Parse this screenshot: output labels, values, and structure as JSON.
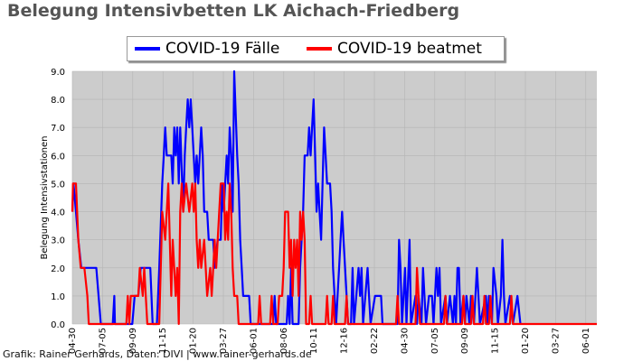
{
  "chart_data": {
    "type": "line",
    "title": "Belegung Intensivbetten LK Aichach-Friedberg",
    "ylabel": "Belegung Intensivstationen",
    "xlabel": "",
    "ylim": [
      0,
      9
    ],
    "yticks": [
      "0.0",
      "1.0",
      "2.0",
      "3.0",
      "4.0",
      "5.0",
      "6.0",
      "7.0",
      "8.0",
      "9.0"
    ],
    "grid": true,
    "legend_position": "top",
    "x_tick_labels": [
      "04-30",
      "07-05",
      "09-09",
      "11-15",
      "01-20",
      "03-27",
      "06-01",
      "08-06",
      "10-11",
      "12-16",
      "02-22",
      "04-30",
      "07-05",
      "09-09",
      "11-15",
      "01-20",
      "03-27",
      "06-01"
    ],
    "x_start_label": "04-30",
    "x_end_label": "after 06-01",
    "series": [
      {
        "name": "COVID-19 Fälle",
        "color": "#0000ff",
        "points": [
          [
            0,
            4
          ],
          [
            0.04,
            5
          ],
          [
            0.12,
            4
          ],
          [
            0.2,
            3
          ],
          [
            0.3,
            2
          ],
          [
            0.8,
            2
          ],
          [
            0.95,
            0
          ],
          [
            1.1,
            0
          ],
          [
            1.35,
            0
          ],
          [
            1.4,
            1
          ],
          [
            1.42,
            0
          ],
          [
            2.0,
            0
          ],
          [
            2.08,
            1
          ],
          [
            2.2,
            1
          ],
          [
            2.28,
            2
          ],
          [
            2.6,
            2
          ],
          [
            2.68,
            0
          ],
          [
            2.82,
            0
          ],
          [
            2.9,
            2
          ],
          [
            3.0,
            5
          ],
          [
            3.05,
            6
          ],
          [
            3.1,
            7
          ],
          [
            3.15,
            6
          ],
          [
            3.3,
            6
          ],
          [
            3.35,
            5
          ],
          [
            3.4,
            7
          ],
          [
            3.45,
            6
          ],
          [
            3.5,
            7
          ],
          [
            3.55,
            5
          ],
          [
            3.6,
            7
          ],
          [
            3.7,
            4
          ],
          [
            3.75,
            6
          ],
          [
            3.8,
            7
          ],
          [
            3.85,
            8
          ],
          [
            3.9,
            7
          ],
          [
            3.95,
            8
          ],
          [
            4.0,
            7
          ],
          [
            4.05,
            6
          ],
          [
            4.1,
            5
          ],
          [
            4.15,
            6
          ],
          [
            4.2,
            5
          ],
          [
            4.25,
            6
          ],
          [
            4.3,
            7
          ],
          [
            4.35,
            6
          ],
          [
            4.4,
            4
          ],
          [
            4.5,
            4
          ],
          [
            4.55,
            3
          ],
          [
            4.7,
            3
          ],
          [
            4.75,
            2
          ],
          [
            4.85,
            3
          ],
          [
            4.95,
            3
          ],
          [
            5.0,
            5
          ],
          [
            5.05,
            4
          ],
          [
            5.1,
            5
          ],
          [
            5.15,
            6
          ],
          [
            5.2,
            5
          ],
          [
            5.25,
            7
          ],
          [
            5.3,
            6
          ],
          [
            5.35,
            4
          ],
          [
            5.4,
            9
          ],
          [
            5.5,
            6
          ],
          [
            5.55,
            5
          ],
          [
            5.6,
            3
          ],
          [
            5.65,
            2
          ],
          [
            5.7,
            1
          ],
          [
            5.9,
            1
          ],
          [
            5.95,
            0
          ],
          [
            6.7,
            0
          ],
          [
            6.75,
            1
          ],
          [
            6.8,
            0
          ],
          [
            7.15,
            0
          ],
          [
            7.2,
            1
          ],
          [
            7.25,
            0
          ],
          [
            7.3,
            2
          ],
          [
            7.35,
            0
          ],
          [
            7.55,
            0
          ],
          [
            7.6,
            2
          ],
          [
            7.7,
            4
          ],
          [
            7.75,
            6
          ],
          [
            7.85,
            6
          ],
          [
            7.9,
            7
          ],
          [
            7.95,
            6
          ],
          [
            8.0,
            7
          ],
          [
            8.05,
            8
          ],
          [
            8.1,
            6
          ],
          [
            8.15,
            4
          ],
          [
            8.2,
            5
          ],
          [
            8.25,
            4
          ],
          [
            8.3,
            3
          ],
          [
            8.35,
            5
          ],
          [
            8.4,
            7
          ],
          [
            8.45,
            6
          ],
          [
            8.5,
            5
          ],
          [
            8.6,
            5
          ],
          [
            8.65,
            4
          ],
          [
            8.7,
            2
          ],
          [
            8.75,
            1
          ],
          [
            8.8,
            0
          ],
          [
            8.85,
            1
          ],
          [
            8.9,
            2
          ],
          [
            8.95,
            3
          ],
          [
            9.0,
            4
          ],
          [
            9.05,
            3
          ],
          [
            9.1,
            2
          ],
          [
            9.15,
            1
          ],
          [
            9.2,
            0
          ],
          [
            9.3,
            0
          ],
          [
            9.35,
            2
          ],
          [
            9.4,
            0
          ],
          [
            9.55,
            2
          ],
          [
            9.6,
            1
          ],
          [
            9.65,
            2
          ],
          [
            9.7,
            0
          ],
          [
            9.85,
            2
          ],
          [
            9.9,
            1
          ],
          [
            9.95,
            0
          ],
          [
            10.1,
            1
          ],
          [
            10.3,
            1
          ],
          [
            10.35,
            0
          ],
          [
            10.85,
            0
          ],
          [
            10.9,
            3
          ],
          [
            10.95,
            2
          ],
          [
            11.0,
            0
          ],
          [
            11.1,
            2
          ],
          [
            11.15,
            0
          ],
          [
            11.25,
            3
          ],
          [
            11.3,
            0
          ],
          [
            11.45,
            1
          ],
          [
            11.5,
            0
          ],
          [
            11.55,
            1
          ],
          [
            11.65,
            0
          ],
          [
            11.7,
            2
          ],
          [
            11.75,
            1
          ],
          [
            11.8,
            0
          ],
          [
            11.9,
            1
          ],
          [
            12.0,
            1
          ],
          [
            12.05,
            0
          ],
          [
            12.15,
            2
          ],
          [
            12.2,
            1
          ],
          [
            12.25,
            2
          ],
          [
            12.3,
            0
          ],
          [
            12.45,
            1
          ],
          [
            12.5,
            0
          ],
          [
            12.6,
            1
          ],
          [
            12.7,
            0
          ],
          [
            12.75,
            1
          ],
          [
            12.8,
            0
          ],
          [
            12.85,
            2
          ],
          [
            12.9,
            2
          ],
          [
            12.95,
            0
          ],
          [
            13.05,
            1
          ],
          [
            13.1,
            0
          ],
          [
            13.15,
            1
          ],
          [
            13.25,
            0
          ],
          [
            13.3,
            1
          ],
          [
            13.4,
            0
          ],
          [
            13.5,
            2
          ],
          [
            13.55,
            1
          ],
          [
            13.6,
            0
          ],
          [
            13.8,
            1
          ],
          [
            13.85,
            0
          ],
          [
            13.9,
            1
          ],
          [
            14.0,
            0
          ],
          [
            14.05,
            2
          ],
          [
            14.15,
            1
          ],
          [
            14.2,
            0
          ],
          [
            14.3,
            1
          ],
          [
            14.35,
            3
          ],
          [
            14.4,
            1
          ],
          [
            14.45,
            0
          ],
          [
            14.6,
            1
          ],
          [
            14.7,
            0
          ],
          [
            14.85,
            1
          ],
          [
            14.95,
            0
          ]
        ]
      },
      {
        "name": "COVID-19 beatmet",
        "color": "#ff0000",
        "points": [
          [
            0,
            4
          ],
          [
            0.02,
            5
          ],
          [
            0.12,
            5
          ],
          [
            0.2,
            3
          ],
          [
            0.28,
            2
          ],
          [
            0.4,
            2
          ],
          [
            0.5,
            1
          ],
          [
            0.55,
            0
          ],
          [
            1.8,
            0
          ],
          [
            1.85,
            1
          ],
          [
            1.9,
            0
          ],
          [
            1.95,
            1
          ],
          [
            2.2,
            1
          ],
          [
            2.25,
            2
          ],
          [
            2.35,
            1
          ],
          [
            2.4,
            2
          ],
          [
            2.5,
            0
          ],
          [
            2.9,
            0
          ],
          [
            2.95,
            2
          ],
          [
            3.0,
            4
          ],
          [
            3.1,
            3
          ],
          [
            3.2,
            5
          ],
          [
            3.3,
            1
          ],
          [
            3.35,
            3
          ],
          [
            3.45,
            1
          ],
          [
            3.5,
            2
          ],
          [
            3.55,
            0
          ],
          [
            3.6,
            4
          ],
          [
            3.65,
            5
          ],
          [
            3.7,
            4
          ],
          [
            3.8,
            5
          ],
          [
            3.9,
            4
          ],
          [
            4.0,
            5
          ],
          [
            4.05,
            4
          ],
          [
            4.1,
            5
          ],
          [
            4.15,
            3
          ],
          [
            4.2,
            2
          ],
          [
            4.25,
            3
          ],
          [
            4.3,
            2
          ],
          [
            4.4,
            3
          ],
          [
            4.45,
            2
          ],
          [
            4.5,
            1
          ],
          [
            4.6,
            2
          ],
          [
            4.65,
            1
          ],
          [
            4.7,
            2
          ],
          [
            4.75,
            3
          ],
          [
            4.8,
            2
          ],
          [
            4.9,
            4
          ],
          [
            4.95,
            5
          ],
          [
            5.05,
            5
          ],
          [
            5.1,
            3
          ],
          [
            5.15,
            4
          ],
          [
            5.2,
            3
          ],
          [
            5.25,
            5
          ],
          [
            5.3,
            4
          ],
          [
            5.35,
            2
          ],
          [
            5.4,
            1
          ],
          [
            5.5,
            1
          ],
          [
            5.55,
            0
          ],
          [
            6.2,
            0
          ],
          [
            6.25,
            1
          ],
          [
            6.3,
            0
          ],
          [
            6.6,
            0
          ],
          [
            6.65,
            1
          ],
          [
            6.7,
            0
          ],
          [
            6.85,
            0
          ],
          [
            6.9,
            1
          ],
          [
            7.0,
            1
          ],
          [
            7.05,
            2
          ],
          [
            7.1,
            4
          ],
          [
            7.2,
            4
          ],
          [
            7.25,
            2
          ],
          [
            7.3,
            3
          ],
          [
            7.35,
            1
          ],
          [
            7.4,
            3
          ],
          [
            7.45,
            2
          ],
          [
            7.5,
            3
          ],
          [
            7.55,
            1
          ],
          [
            7.6,
            4
          ],
          [
            7.65,
            3
          ],
          [
            7.7,
            4
          ],
          [
            7.75,
            3
          ],
          [
            7.8,
            0
          ],
          [
            7.9,
            0
          ],
          [
            7.95,
            1
          ],
          [
            8.0,
            0
          ],
          [
            8.45,
            0
          ],
          [
            8.5,
            1
          ],
          [
            8.55,
            0
          ],
          [
            8.65,
            0
          ],
          [
            8.7,
            1
          ],
          [
            8.75,
            0
          ],
          [
            9.1,
            0
          ],
          [
            9.15,
            1
          ],
          [
            9.2,
            0
          ],
          [
            10.8,
            0
          ],
          [
            10.85,
            1
          ],
          [
            10.9,
            0
          ],
          [
            11.45,
            0
          ],
          [
            11.5,
            2
          ],
          [
            11.55,
            1
          ],
          [
            11.6,
            0
          ],
          [
            12.4,
            0
          ],
          [
            12.45,
            1
          ],
          [
            12.5,
            0
          ],
          [
            13.0,
            0
          ],
          [
            13.05,
            1
          ],
          [
            13.1,
            0
          ],
          [
            13.3,
            0
          ],
          [
            13.35,
            1
          ],
          [
            13.4,
            0
          ],
          [
            13.7,
            0
          ],
          [
            13.75,
            1
          ],
          [
            13.8,
            0
          ],
          [
            13.9,
            0
          ],
          [
            13.95,
            1
          ],
          [
            14.0,
            0
          ],
          [
            14.6,
            0
          ],
          [
            14.65,
            1
          ],
          [
            14.7,
            0
          ],
          [
            17.5,
            0
          ]
        ]
      }
    ],
    "x_range": [
      0,
      17.5
    ]
  },
  "footer": "Grafik: Rainer Gerhards, Daten: DIVI | www.rainer-gerhards.de"
}
